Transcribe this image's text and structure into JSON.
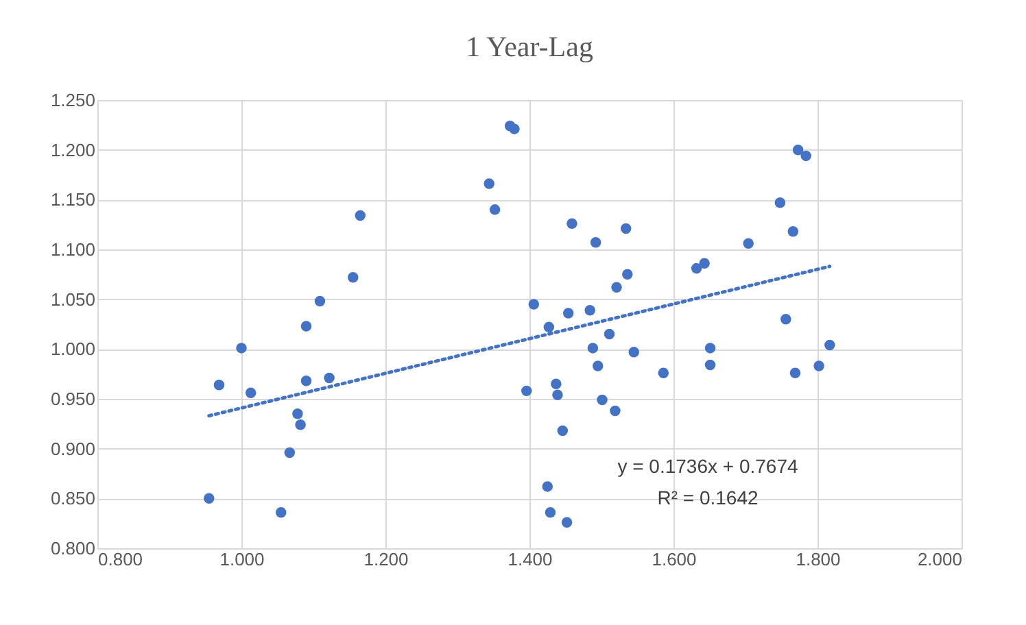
{
  "chart_data": {
    "type": "scatter",
    "title": "1 Year-Lag",
    "xlim": [
      0.8,
      2.0
    ],
    "xticks": [
      {
        "value": 0.8,
        "label": "0.800"
      },
      {
        "value": 1.0,
        "label": "1.000"
      },
      {
        "value": 1.2,
        "label": "1.200"
      },
      {
        "value": 1.4,
        "label": "1.400"
      },
      {
        "value": 1.6,
        "label": "1.600"
      },
      {
        "value": 1.8,
        "label": "1.800"
      },
      {
        "value": 2.0,
        "label": "2.000"
      }
    ],
    "ylim": [
      0.8,
      1.25
    ],
    "yticks": [
      {
        "value": 0.8,
        "label": "0.800"
      },
      {
        "value": 0.85,
        "label": "0.850"
      },
      {
        "value": 0.9,
        "label": "0.900"
      },
      {
        "value": 0.95,
        "label": "0.950"
      },
      {
        "value": 1.0,
        "label": "1.000"
      },
      {
        "value": 1.05,
        "label": "1.050"
      },
      {
        "value": 1.1,
        "label": "1.100"
      },
      {
        "value": 1.15,
        "label": "1.150"
      },
      {
        "value": 1.2,
        "label": "1.200"
      },
      {
        "value": 1.25,
        "label": "1.250"
      }
    ],
    "grid": true,
    "legend": false,
    "marker": "circle",
    "annotations": [
      "y = 0.1736x  + 0.7674",
      "R² = 0.1642"
    ],
    "series": [
      {
        "type": "scatter",
        "color": "#4472c4",
        "x": [
          0.955,
          0.969,
          1.0,
          1.013,
          1.055,
          1.067,
          1.078,
          1.082,
          1.09,
          1.09,
          1.109,
          1.122,
          1.155,
          1.165,
          1.344,
          1.352,
          1.373,
          1.379,
          1.396,
          1.406,
          1.425,
          1.429,
          1.427,
          1.437,
          1.439,
          1.446,
          1.452,
          1.454,
          1.459,
          1.484,
          1.492,
          1.488,
          1.495,
          1.501,
          1.511,
          1.519,
          1.521,
          1.536,
          1.534,
          1.545,
          1.586,
          1.632,
          1.643,
          1.651,
          1.651,
          1.704,
          1.748,
          1.756,
          1.766,
          1.769,
          1.773,
          1.784,
          1.802,
          1.817
        ],
        "values": [
          0.85,
          0.964,
          1.001,
          0.956,
          0.836,
          0.896,
          0.935,
          0.924,
          0.968,
          1.023,
          1.048,
          0.971,
          1.072,
          1.134,
          1.166,
          1.14,
          1.224,
          1.221,
          0.958,
          1.045,
          0.862,
          0.836,
          1.022,
          0.965,
          0.954,
          0.918,
          0.826,
          1.036,
          1.126,
          1.039,
          1.107,
          1.001,
          0.983,
          0.949,
          1.015,
          0.938,
          1.062,
          1.075,
          1.121,
          0.997,
          0.976,
          1.081,
          1.086,
          1.001,
          0.984,
          1.106,
          1.147,
          1.03,
          1.118,
          0.976,
          1.2,
          1.194,
          0.983,
          1.004
        ]
      },
      {
        "type": "line",
        "color": "#4472c4",
        "line_style": "dotted",
        "marker": "none",
        "x": [
          0.955,
          1.817
        ],
        "values": [
          0.933,
          1.083
        ]
      }
    ]
  }
}
